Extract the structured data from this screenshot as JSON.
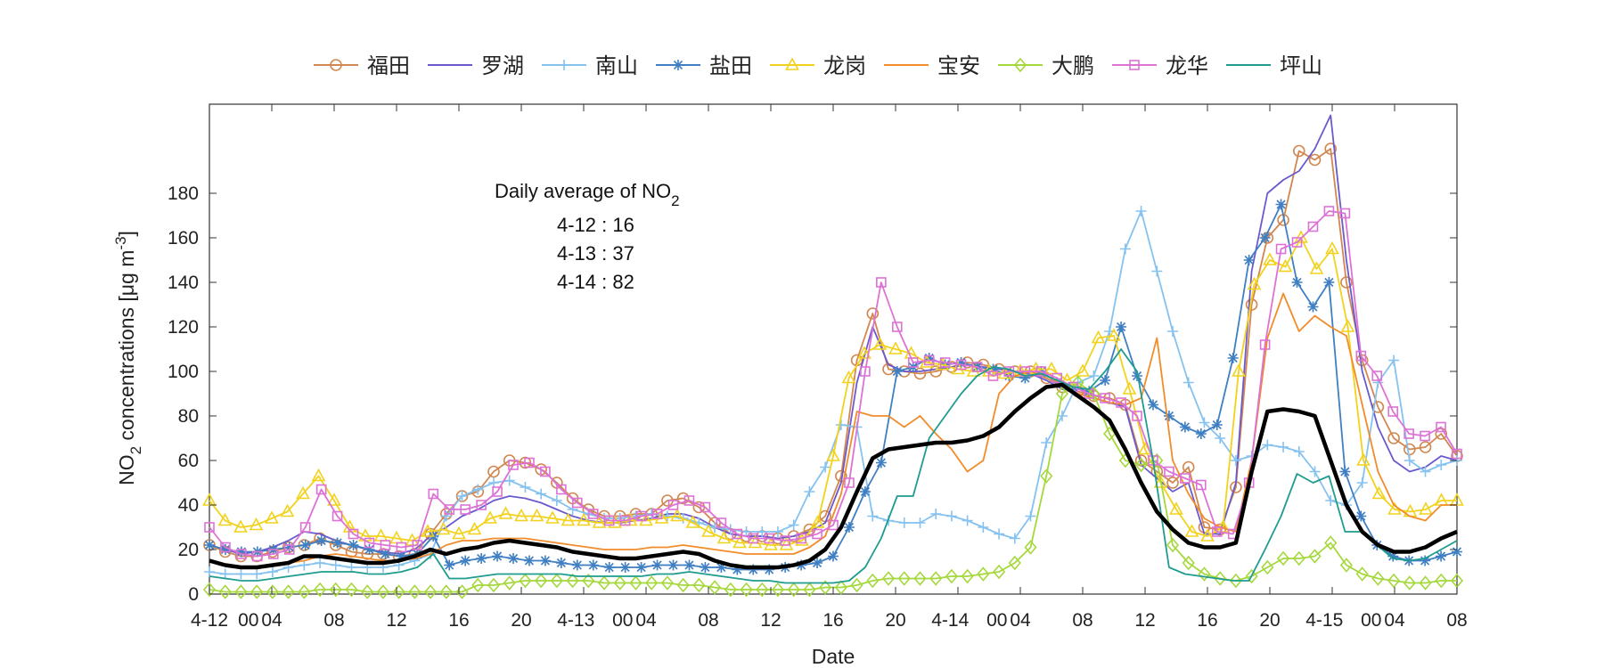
{
  "chart_data": {
    "type": "line",
    "xlabel": "Date",
    "ylabel": "NO",
    "ylabel_sub": "2",
    "ylabel_rest": " concentrations [μg m",
    "ylabel_sup": "-3",
    "ylabel_end": "]",
    "ylim": [
      0,
      220
    ],
    "yticks": [
      0,
      20,
      40,
      60,
      80,
      100,
      120,
      140,
      160,
      180
    ],
    "xlim": [
      0,
      68
    ],
    "x_tick_hours": [
      0,
      4,
      8,
      12,
      16,
      20,
      24,
      28,
      32,
      36,
      40,
      44,
      48,
      52,
      56,
      60,
      64,
      68
    ],
    "x_tick_labels": [
      "4-12",
      "00",
      "04",
      "08",
      "12",
      "16",
      "20",
      "4-13",
      "00",
      "04",
      "08",
      "12",
      "16",
      "20",
      "4-14",
      "00",
      "04",
      "08",
      "12",
      "16",
      "20",
      "4-15",
      "00",
      "04",
      "08"
    ],
    "annotation": {
      "title": "Daily average of NO",
      "title_sub": "2",
      "lines": [
        "4-12 : 16",
        "4-13 : 37",
        "4-14 : 82"
      ]
    },
    "legend_position": "top",
    "series": [
      {
        "name": "福田",
        "color": "#d1874f",
        "marker": "circle",
        "values": [
          22,
          19,
          17,
          17,
          19,
          21,
          22,
          25,
          22,
          19,
          18,
          18,
          17,
          18,
          27,
          36,
          44,
          46,
          55,
          60,
          59,
          56,
          50,
          43,
          38,
          35,
          35,
          36,
          36,
          42,
          43,
          39,
          32,
          27,
          26,
          26,
          25,
          26,
          29,
          35,
          53,
          105,
          126,
          101,
          100,
          99,
          100,
          102,
          104,
          103,
          101,
          100,
          100,
          97,
          93,
          91,
          89,
          88,
          85,
          60,
          55,
          50,
          57,
          30,
          29,
          48,
          130,
          160,
          168,
          199,
          195,
          200,
          140,
          105,
          84,
          70,
          65,
          66,
          72,
          62
        ]
      },
      {
        "name": "罗湖",
        "color": "#6a5acd",
        "marker": "none",
        "values": [
          22,
          20,
          18,
          19,
          21,
          24,
          28,
          27,
          24,
          22,
          20,
          19,
          18,
          20,
          26,
          30,
          35,
          38,
          42,
          44,
          43,
          41,
          38,
          35,
          33,
          32,
          32,
          33,
          34,
          36,
          36,
          34,
          30,
          27,
          26,
          26,
          25,
          26,
          28,
          32,
          50,
          95,
          120,
          103,
          100,
          100,
          101,
          102,
          103,
          102,
          101,
          100,
          99,
          96,
          92,
          90,
          88,
          86,
          84,
          58,
          52,
          46,
          50,
          27,
          27,
          50,
          145,
          180,
          186,
          190,
          200,
          215,
          150,
          100,
          75,
          60,
          55,
          57,
          62,
          60
        ]
      },
      {
        "name": "南山",
        "color": "#85c2f0",
        "marker": "plus",
        "values": [
          10,
          9,
          9,
          9,
          10,
          12,
          13,
          14,
          13,
          12,
          12,
          12,
          13,
          15,
          18,
          35,
          44,
          47,
          50,
          51,
          48,
          45,
          42,
          38,
          36,
          34,
          34,
          35,
          36,
          35,
          34,
          32,
          30,
          29,
          28,
          28,
          28,
          31,
          46,
          57,
          76,
          75,
          35,
          33,
          32,
          32,
          36,
          35,
          33,
          30,
          27,
          25,
          35,
          68,
          80,
          95,
          98,
          118,
          155,
          172,
          145,
          118,
          95,
          77,
          70,
          60,
          62,
          67,
          66,
          64,
          55,
          42,
          40,
          50,
          95,
          105,
          60,
          55,
          58,
          60
        ]
      },
      {
        "name": "盐田",
        "color": "#3f7fc2",
        "marker": "star",
        "values": [
          22,
          20,
          19,
          19,
          20,
          21,
          22,
          24,
          23,
          22,
          20,
          18,
          17,
          18,
          26,
          13,
          15,
          16,
          17,
          16,
          15,
          15,
          14,
          13,
          13,
          12,
          12,
          12,
          13,
          13,
          13,
          12,
          12,
          11,
          11,
          11,
          12,
          13,
          14,
          17,
          30,
          46,
          59,
          100,
          102,
          106,
          103,
          104,
          102,
          101,
          98,
          97,
          100,
          95,
          93,
          91,
          96,
          120,
          98,
          85,
          80,
          75,
          72,
          76,
          106,
          150,
          160,
          175,
          140,
          129,
          140,
          55,
          35,
          22,
          17,
          15,
          15,
          17,
          19
        ]
      },
      {
        "name": "龙岗",
        "color": "#f2d21c",
        "marker": "triangle",
        "values": [
          42,
          33,
          30,
          31,
          34,
          37,
          45,
          53,
          42,
          30,
          26,
          26,
          25,
          24,
          28,
          29,
          27,
          29,
          34,
          36,
          35,
          35,
          34,
          33,
          33,
          32,
          32,
          33,
          33,
          34,
          35,
          32,
          28,
          25,
          23,
          23,
          22,
          22,
          24,
          32,
          62,
          97,
          108,
          112,
          110,
          108,
          104,
          103,
          101,
          100,
          100,
          99,
          100,
          101,
          101,
          96,
          100,
          115,
          116,
          92,
          65,
          50,
          38,
          28,
          26,
          30,
          100,
          139,
          150,
          147,
          160,
          146,
          155,
          120,
          60,
          45,
          38,
          37,
          38,
          42,
          42
        ]
      },
      {
        "name": "宝安",
        "color": "#f28c2a",
        "marker": "none",
        "values": [
          15,
          13,
          12,
          12,
          13,
          14,
          15,
          17,
          18,
          17,
          16,
          15,
          15,
          16,
          18,
          22,
          24,
          24,
          25,
          25,
          25,
          24,
          23,
          22,
          21,
          20,
          20,
          20,
          21,
          21,
          22,
          21,
          20,
          19,
          18,
          18,
          18,
          18,
          21,
          26,
          45,
          82,
          80,
          80,
          75,
          80,
          72,
          65,
          55,
          60,
          90,
          98,
          100,
          98,
          94,
          90,
          88,
          86,
          85,
          88,
          115,
          60,
          45,
          34,
          30,
          28,
          60,
          115,
          135,
          118,
          125,
          120,
          116,
          85,
          55,
          40,
          35,
          33,
          40,
          40
        ]
      },
      {
        "name": "大鹏",
        "color": "#a5d83c",
        "marker": "diamond",
        "values": [
          2,
          1,
          1,
          1,
          1,
          1,
          1,
          2,
          2,
          2,
          1,
          1,
          1,
          1,
          1,
          1,
          1,
          4,
          4,
          5,
          6,
          6,
          6,
          6,
          6,
          5,
          5,
          5,
          5,
          5,
          4,
          4,
          3,
          2,
          2,
          2,
          2,
          2,
          2,
          3,
          3,
          4,
          6,
          7,
          7,
          7,
          7,
          8,
          8,
          9,
          10,
          14,
          21,
          53,
          90,
          95,
          90,
          72,
          60,
          58,
          60,
          22,
          14,
          9,
          7,
          6,
          8,
          12,
          16,
          16,
          17,
          23,
          13,
          9,
          7,
          6,
          5,
          5,
          6,
          6
        ]
      },
      {
        "name": "龙华",
        "color": "#dd72d6",
        "marker": "square",
        "values": [
          30,
          21,
          18,
          17,
          18,
          20,
          30,
          47,
          35,
          27,
          23,
          22,
          21,
          22,
          45,
          38,
          38,
          40,
          46,
          58,
          59,
          55,
          47,
          41,
          36,
          33,
          33,
          35,
          36,
          40,
          42,
          39,
          32,
          27,
          25,
          25,
          24,
          25,
          27,
          31,
          50,
          100,
          140,
          120,
          104,
          105,
          104,
          103,
          102,
          98,
          100,
          100,
          100,
          97,
          93,
          90,
          88,
          86,
          80,
          60,
          55,
          52,
          49,
          28,
          27,
          50,
          112,
          155,
          158,
          165,
          172,
          171,
          107,
          98,
          82,
          72,
          71,
          75,
          63
        ]
      },
      {
        "name": "坪山",
        "color": "#1f9c8f",
        "marker": "none",
        "values": [
          8,
          7,
          6,
          6,
          7,
          8,
          9,
          10,
          10,
          10,
          9,
          9,
          10,
          12,
          18,
          7,
          7,
          8,
          9,
          9,
          9,
          9,
          9,
          8,
          8,
          8,
          8,
          8,
          9,
          9,
          10,
          9,
          8,
          7,
          6,
          6,
          5,
          5,
          5,
          5,
          6,
          12,
          25,
          44,
          44,
          70,
          80,
          90,
          98,
          102,
          101,
          98,
          99,
          96,
          93,
          92,
          100,
          110,
          100,
          60,
          12,
          9,
          8,
          7,
          6,
          6,
          20,
          35,
          54,
          50,
          53,
          28,
          28,
          22,
          16,
          15,
          16,
          20,
          24
        ]
      },
      {
        "name": "",
        "color": "#000000",
        "marker": "none",
        "values": [
          15,
          13,
          12,
          12,
          13,
          14,
          17,
          17,
          16,
          15,
          14,
          14,
          15,
          17,
          20,
          18,
          20,
          21,
          23,
          24,
          23,
          22,
          21,
          19,
          18,
          17,
          16,
          16,
          17,
          18,
          19,
          18,
          15,
          13,
          12,
          12,
          12,
          13,
          15,
          20,
          30,
          46,
          61,
          65,
          66,
          67,
          68,
          68,
          69,
          71,
          75,
          82,
          88,
          93,
          94,
          89,
          84,
          78,
          65,
          50,
          37,
          29,
          23,
          21,
          21,
          23,
          55,
          82,
          83,
          82,
          80,
          60,
          40,
          28,
          22,
          19,
          19,
          21,
          25,
          28
        ]
      }
    ]
  }
}
